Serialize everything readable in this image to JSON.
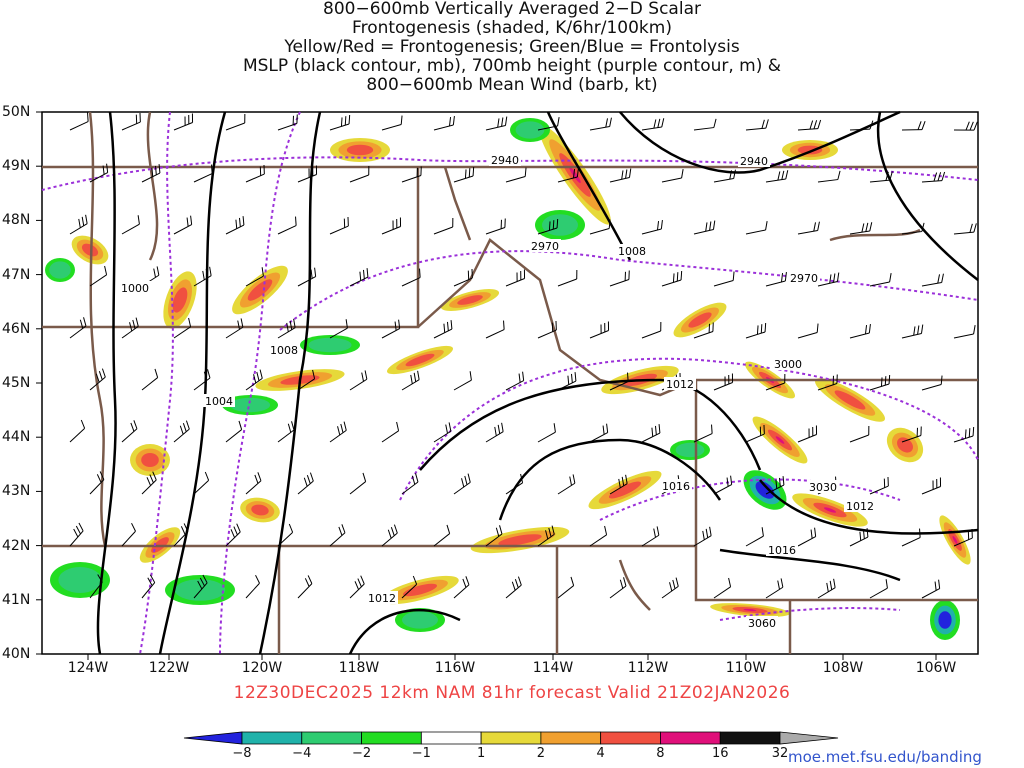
{
  "title": {
    "line1": "800−600mb Vertically Averaged 2−D Scalar",
    "line2": "Frontogenesis (shaded, K/6hr/100km)",
    "line3": "Yellow/Red = Frontogenesis;  Green/Blue = Frontolysis",
    "line4": "MSLP (black contour, mb), 700mb height (purple contour, m) &",
    "line5": "800−600mb Mean Wind (barb, kt)"
  },
  "lat_labels": [
    "50N",
    "49N",
    "48N",
    "47N",
    "46N",
    "45N",
    "44N",
    "43N",
    "42N",
    "41N",
    "40N"
  ],
  "lon_labels": [
    "124W",
    "122W",
    "120W",
    "118W",
    "116W",
    "114W",
    "112W",
    "110W",
    "108W",
    "106W"
  ],
  "mslp_labels": [
    "1000",
    "1004",
    "1008",
    "1008",
    "1012",
    "1012",
    "1012",
    "1016",
    "1016"
  ],
  "height_labels": [
    "2940",
    "2940",
    "2970",
    "2970",
    "3000",
    "3030",
    "3060"
  ],
  "valid_line": "12Z30DEC2025 12km NAM 81hr forecast Valid 21Z02JAN2026",
  "colorbar": {
    "labels": [
      "−8",
      "−4",
      "−2",
      "−1",
      "1",
      "2",
      "4",
      "8",
      "16",
      "32"
    ],
    "colors": [
      "#2222dd",
      "#20b2aa",
      "#2ecc71",
      "#22dd22",
      "#ffffff",
      "#e6d93a",
      "#f0a030",
      "#f05040",
      "#e0107a",
      "#111111",
      "#aaaaaa"
    ]
  },
  "credit": "moe.met.fsu.edu/banding"
}
